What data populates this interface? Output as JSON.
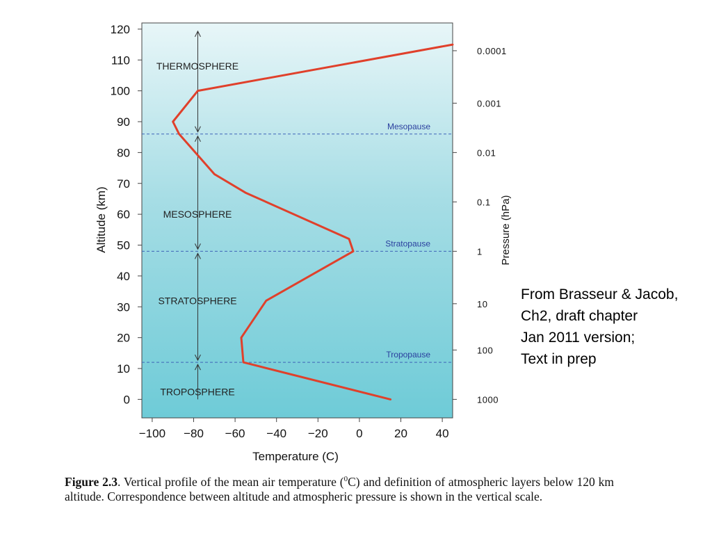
{
  "chart_data": {
    "type": "line",
    "title": "",
    "xlabel": "Temperature (C)",
    "ylabel": "Altitude (km)",
    "y2label": "Pressure (hPa)",
    "xlim": [
      -105,
      45
    ],
    "ylim": [
      -6,
      122
    ],
    "x_ticks": [
      -100,
      -80,
      -60,
      -40,
      -20,
      0,
      20,
      40
    ],
    "x_tick_labels": [
      "−100",
      "−80",
      "−60",
      "−40",
      "−20",
      "0",
      "20",
      "40"
    ],
    "y_ticks": [
      0,
      10,
      20,
      30,
      40,
      50,
      60,
      70,
      80,
      90,
      100,
      110,
      120
    ],
    "y_tick_labels": [
      "0",
      "10",
      "20",
      "30",
      "40",
      "50",
      "60",
      "70",
      "80",
      "90",
      "100",
      "110",
      "120"
    ],
    "pressure_ticks": [
      {
        "label": "1000",
        "altitude": 0
      },
      {
        "label": "100",
        "altitude": 16
      },
      {
        "label": "10",
        "altitude": 31
      },
      {
        "label": "1",
        "altitude": 48
      },
      {
        "label": "0.1",
        "altitude": 64
      },
      {
        "label": "0.01",
        "altitude": 80
      },
      {
        "label": "0.001",
        "altitude": 96
      },
      {
        "label": "0.0001",
        "altitude": 113
      }
    ],
    "series": [
      {
        "color": "#e0402b",
        "points": [
          {
            "x": 15,
            "y": 0
          },
          {
            "x": -50,
            "y": 11
          },
          {
            "x": -56,
            "y": 12
          },
          {
            "x": -57,
            "y": 20
          },
          {
            "x": -45,
            "y": 32
          },
          {
            "x": -3,
            "y": 48
          },
          {
            "x": -5,
            "y": 52
          },
          {
            "x": -55,
            "y": 67
          },
          {
            "x": -70,
            "y": 73
          },
          {
            "x": -87,
            "y": 86
          },
          {
            "x": -90,
            "y": 90
          },
          {
            "x": -78,
            "y": 100
          },
          {
            "x": 45,
            "y": 115
          }
        ]
      }
    ],
    "layers": [
      {
        "name": "THERMOSPHERE",
        "label_altitude": 108
      },
      {
        "name": "MESOSPHERE",
        "label_altitude": 60
      },
      {
        "name": "STRATOSPHERE",
        "label_altitude": 32
      },
      {
        "name": "TROPOSPHERE",
        "label_altitude": 2.5
      }
    ],
    "pauses": [
      {
        "name": "Mesopause",
        "altitude": 86
      },
      {
        "name": "Stratopause",
        "altitude": 48
      },
      {
        "name": "Tropopause",
        "altitude": 12
      }
    ],
    "layer_arrow_temperature": -78,
    "grid": false,
    "colors": {
      "background_top": "#e8f6f8",
      "background_bottom": "#6ecbd7",
      "profile": "#e0402b",
      "pause_line": "#3f64b8",
      "pause_text": "#2a3f9e"
    }
  },
  "source_note": {
    "line1": "From Brasseur & Jacob,",
    "line2": "Ch2, draft chapter",
    "line3": "Jan 2011 version;",
    "line4": "Text in prep"
  },
  "caption": {
    "label": "Figure 2.3",
    "text_before_unit": ". Vertical profile of the mean air temperature (",
    "unit_sup": "0",
    "unit_letter": "C",
    "text_after_unit": ") and definition of atmospheric layers below 120 km altitude. Correspondence between altitude and atmospheric pressure is shown in the vertical scale."
  }
}
